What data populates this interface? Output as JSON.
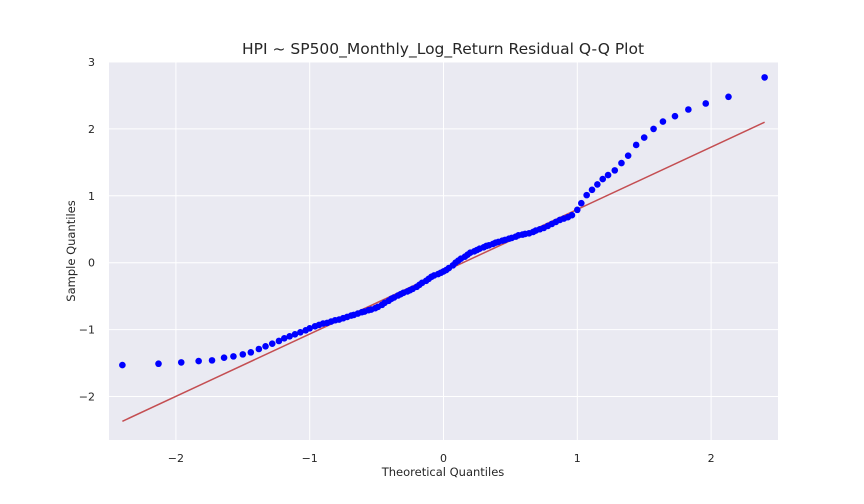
{
  "chart_data": {
    "type": "scatter",
    "title": "HPI ~ SP500_Monthly_Log_Return Residual Q-Q Plot",
    "xlabel": "Theoretical Quantiles",
    "ylabel": "Sample Quantiles",
    "xlim": [
      -2.5,
      2.5
    ],
    "ylim": [
      -2.65,
      3.0
    ],
    "xticks": [
      -2,
      -1,
      0,
      1,
      2
    ],
    "yticks": [
      -2,
      -1,
      0,
      1,
      2,
      3
    ],
    "xtick_labels": [
      "−2",
      "−1",
      "0",
      "1",
      "2"
    ],
    "ytick_labels": [
      "−2",
      "−1",
      "0",
      "1",
      "2",
      "3"
    ],
    "grid": true,
    "legend": "none",
    "colors": {
      "background": "#eaeaf2",
      "grid": "#ffffff",
      "points": "#0000ff",
      "reference_line": "#c44e52",
      "text": "#262626"
    },
    "reference_line": {
      "x": [
        -2.4,
        2.4
      ],
      "y": [
        -2.37,
        2.1
      ]
    },
    "series": [
      {
        "values": [
          [
            -2.4,
            -1.53
          ],
          [
            -2.13,
            -1.51
          ],
          [
            -1.96,
            -1.49
          ],
          [
            -1.83,
            -1.47
          ],
          [
            -1.73,
            -1.46
          ],
          [
            -1.64,
            -1.42
          ],
          [
            -1.57,
            -1.4
          ],
          [
            -1.5,
            -1.37
          ],
          [
            -1.44,
            -1.34
          ],
          [
            -1.38,
            -1.29
          ],
          [
            -1.33,
            -1.25
          ],
          [
            -1.28,
            -1.21
          ],
          [
            -1.23,
            -1.17
          ],
          [
            -1.19,
            -1.13
          ],
          [
            -1.15,
            -1.1
          ],
          [
            -1.11,
            -1.07
          ],
          [
            -1.07,
            -1.04
          ],
          [
            -1.03,
            -1.01
          ],
          [
            -1.0,
            -0.98
          ],
          [
            -0.96,
            -0.95
          ],
          [
            -0.93,
            -0.93
          ],
          [
            -0.9,
            -0.91
          ],
          [
            -0.87,
            -0.9
          ],
          [
            -0.84,
            -0.88
          ],
          [
            -0.81,
            -0.86
          ],
          [
            -0.78,
            -0.85
          ],
          [
            -0.75,
            -0.83
          ],
          [
            -0.72,
            -0.81
          ],
          [
            -0.69,
            -0.79
          ],
          [
            -0.67,
            -0.78
          ],
          [
            -0.64,
            -0.76
          ],
          [
            -0.61,
            -0.74
          ],
          [
            -0.59,
            -0.73
          ],
          [
            -0.56,
            -0.71
          ],
          [
            -0.54,
            -0.7
          ],
          [
            -0.51,
            -0.68
          ],
          [
            -0.49,
            -0.66
          ],
          [
            -0.46,
            -0.63
          ],
          [
            -0.44,
            -0.6
          ],
          [
            -0.41,
            -0.57
          ],
          [
            -0.39,
            -0.54
          ],
          [
            -0.37,
            -0.52
          ],
          [
            -0.34,
            -0.49
          ],
          [
            -0.32,
            -0.47
          ],
          [
            -0.3,
            -0.45
          ],
          [
            -0.27,
            -0.43
          ],
          [
            -0.25,
            -0.41
          ],
          [
            -0.23,
            -0.39
          ],
          [
            -0.2,
            -0.36
          ],
          [
            -0.18,
            -0.33
          ],
          [
            -0.16,
            -0.3
          ],
          [
            -0.13,
            -0.27
          ],
          [
            -0.11,
            -0.24
          ],
          [
            -0.09,
            -0.21
          ],
          [
            -0.07,
            -0.19
          ],
          [
            -0.04,
            -0.17
          ],
          [
            -0.02,
            -0.15
          ],
          [
            0.0,
            -0.13
          ],
          [
            0.02,
            -0.11
          ],
          [
            0.04,
            -0.08
          ],
          [
            0.07,
            -0.04
          ],
          [
            0.09,
            0.0
          ],
          [
            0.11,
            0.03
          ],
          [
            0.13,
            0.06
          ],
          [
            0.16,
            0.09
          ],
          [
            0.18,
            0.12
          ],
          [
            0.2,
            0.15
          ],
          [
            0.23,
            0.17
          ],
          [
            0.25,
            0.19
          ],
          [
            0.27,
            0.21
          ],
          [
            0.3,
            0.23
          ],
          [
            0.32,
            0.25
          ],
          [
            0.34,
            0.26
          ],
          [
            0.37,
            0.28
          ],
          [
            0.39,
            0.3
          ],
          [
            0.41,
            0.31
          ],
          [
            0.44,
            0.33
          ],
          [
            0.46,
            0.34
          ],
          [
            0.49,
            0.36
          ],
          [
            0.51,
            0.37
          ],
          [
            0.54,
            0.39
          ],
          [
            0.56,
            0.41
          ],
          [
            0.59,
            0.42
          ],
          [
            0.61,
            0.43
          ],
          [
            0.64,
            0.44
          ],
          [
            0.67,
            0.46
          ],
          [
            0.69,
            0.48
          ],
          [
            0.72,
            0.5
          ],
          [
            0.75,
            0.52
          ],
          [
            0.78,
            0.55
          ],
          [
            0.81,
            0.58
          ],
          [
            0.84,
            0.61
          ],
          [
            0.87,
            0.64
          ],
          [
            0.9,
            0.66
          ],
          [
            0.93,
            0.68
          ],
          [
            0.96,
            0.71
          ],
          [
            1.0,
            0.79
          ],
          [
            1.03,
            0.89
          ],
          [
            1.07,
            1.01
          ],
          [
            1.11,
            1.09
          ],
          [
            1.15,
            1.17
          ],
          [
            1.19,
            1.25
          ],
          [
            1.23,
            1.31
          ],
          [
            1.28,
            1.38
          ],
          [
            1.33,
            1.49
          ],
          [
            1.38,
            1.6
          ],
          [
            1.44,
            1.76
          ],
          [
            1.5,
            1.87
          ],
          [
            1.57,
            2.0
          ],
          [
            1.64,
            2.11
          ],
          [
            1.73,
            2.19
          ],
          [
            1.83,
            2.29
          ],
          [
            1.96,
            2.38
          ],
          [
            2.13,
            2.48
          ],
          [
            2.4,
            2.77
          ]
        ]
      }
    ]
  }
}
